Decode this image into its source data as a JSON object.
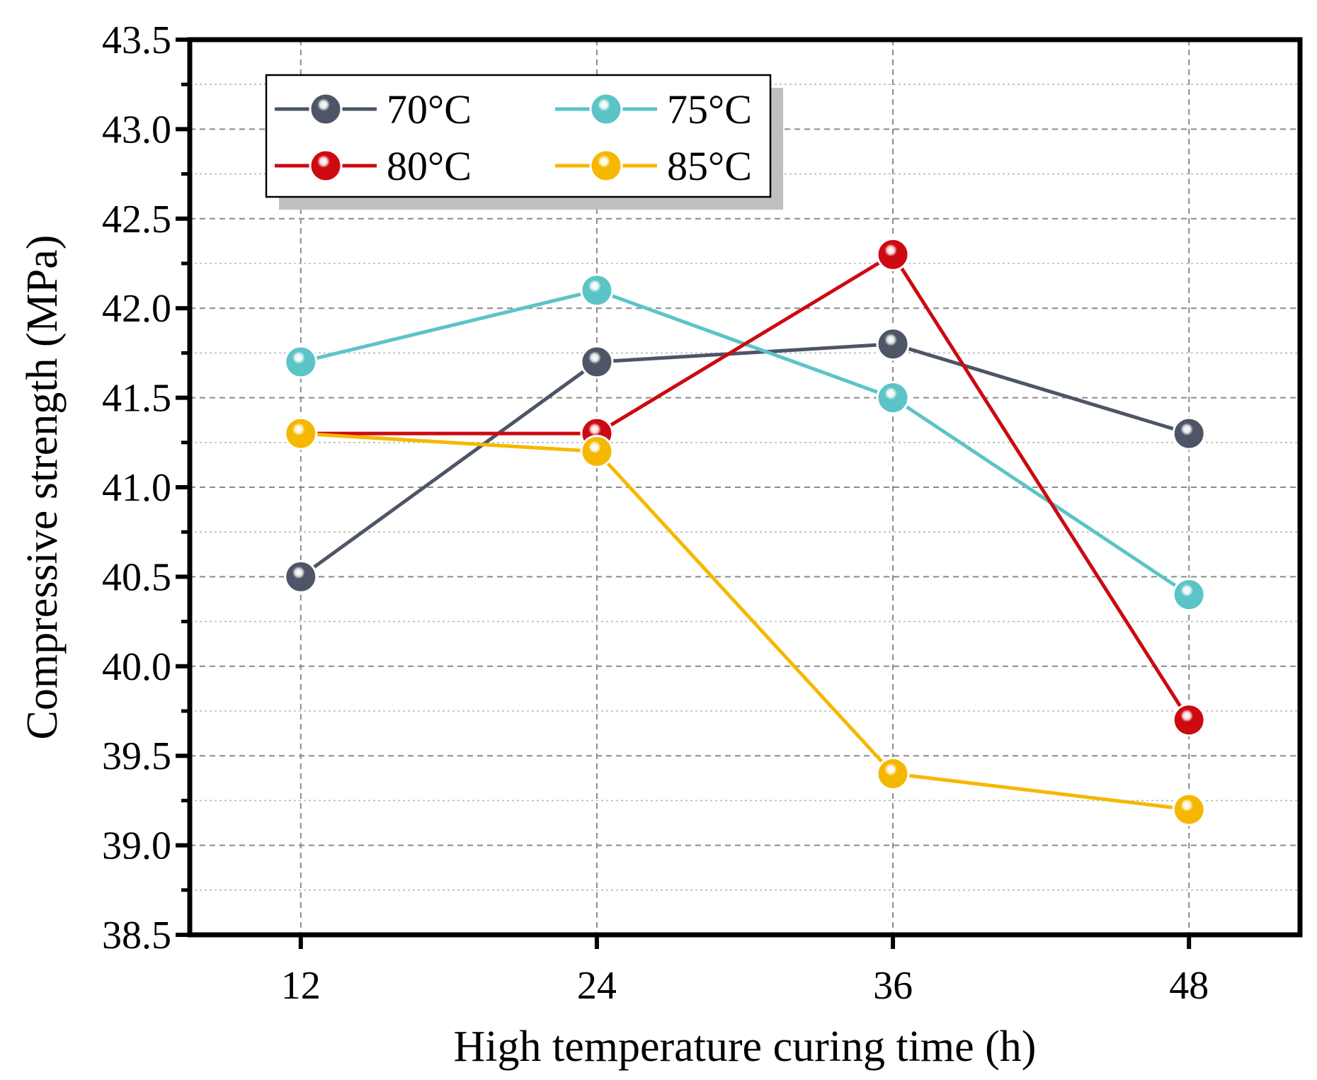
{
  "chart_data": {
    "type": "line",
    "title": "",
    "xlabel": "High temperature curing time (h)",
    "ylabel": "Compressive strength (MPa)",
    "x": [
      12,
      24,
      36,
      48
    ],
    "x_tick_labels": [
      "12",
      "24",
      "36",
      "48"
    ],
    "y_tick_labels": [
      "38.5",
      "39.0",
      "39.5",
      "40.0",
      "40.5",
      "41.0",
      "41.5",
      "42.0",
      "42.5",
      "43.0",
      "43.5"
    ],
    "xlim": [
      7.5,
      52.5
    ],
    "ylim": [
      38.5,
      43.5
    ],
    "grid": true,
    "legend_position": "top-left",
    "series": [
      {
        "name": "70°C",
        "color": "#4d5566",
        "values": [
          40.5,
          41.7,
          41.8,
          41.3
        ]
      },
      {
        "name": "75°C",
        "color": "#5bc4c6",
        "values": [
          41.7,
          42.1,
          41.5,
          40.4
        ]
      },
      {
        "name": "80°C",
        "color": "#cc0a10",
        "values": [
          41.3,
          41.3,
          42.3,
          39.7
        ]
      },
      {
        "name": "85°C",
        "color": "#f5b800",
        "values": [
          41.3,
          41.2,
          39.4,
          39.2
        ]
      }
    ]
  }
}
